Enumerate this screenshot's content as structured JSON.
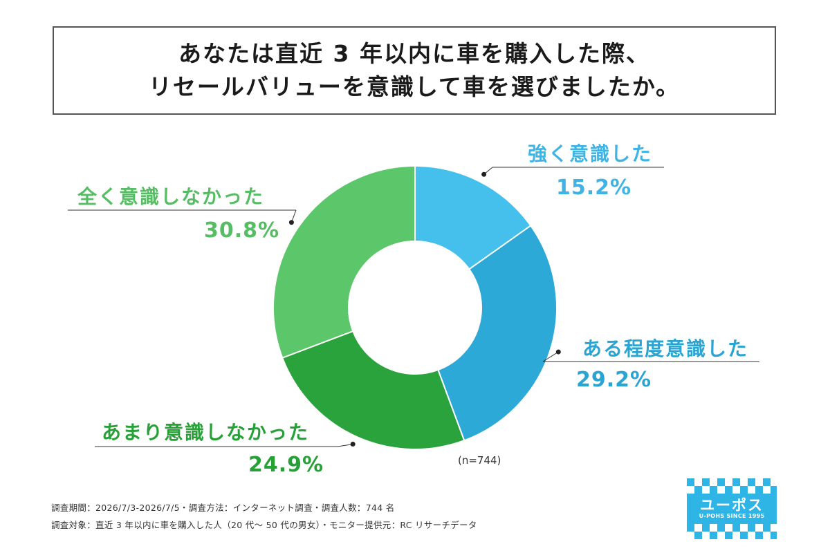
{
  "title": {
    "line1": "あなたは直近 3 年以内に車を購入した際、",
    "line2": "リセールバリューを意識して車を選びましたか。"
  },
  "chart_data": {
    "type": "pie",
    "variant": "donut",
    "start": "12 o'clock, clockwise",
    "categories": [
      "強く意識した",
      "ある程度意識した",
      "あまり意識しなかった",
      "全く意識しなかった"
    ],
    "values": [
      15.2,
      29.2,
      24.9,
      30.8
    ],
    "value_labels": [
      "15.2%",
      "29.2%",
      "24.9%",
      "30.8%"
    ],
    "colors": [
      "#45bfec",
      "#2ca9d6",
      "#2aa33c",
      "#5cc66a"
    ],
    "label_colors": [
      "#3fb4e4",
      "#2aa4d2",
      "#27a038",
      "#56bd64"
    ],
    "leader_color": "#333333",
    "sample_note": "(n=744)"
  },
  "footer": {
    "line1": "調査期間：2026/7/3-2026/7/5・調査方法：インターネット調査・調査人数：744 名",
    "line2": "調査対象：直近 3 年以内に車を購入した人（20 代〜 50 代の男女）・モニター提供元：RC リサーチデータ"
  },
  "logo": {
    "name": "ユーポス",
    "tagline": "U-POHS SINCE 1995",
    "color": "#2fb4e6"
  }
}
